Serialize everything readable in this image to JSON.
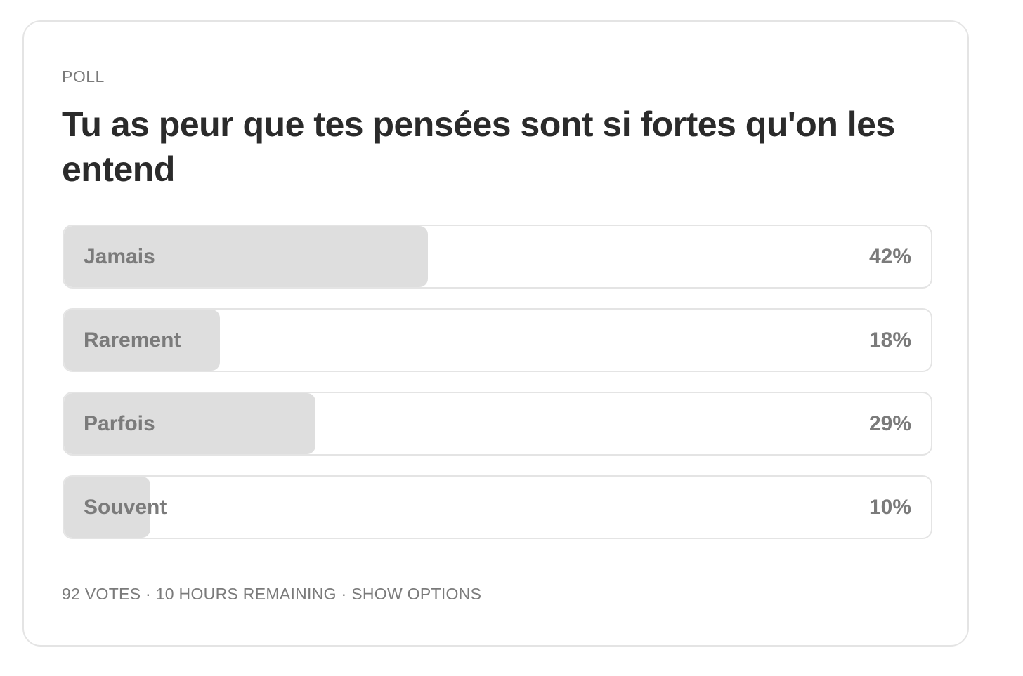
{
  "poll": {
    "label": "POLL",
    "question": "Tu as peur que tes pensées sont si fortes qu'on les entend",
    "options": [
      {
        "label": "Jamais",
        "percent_text": "42%",
        "fill_fraction": 0.42
      },
      {
        "label": "Rarement",
        "percent_text": "18%",
        "fill_fraction": 0.18
      },
      {
        "label": "Parfois",
        "percent_text": "29%",
        "fill_fraction": 0.29
      },
      {
        "label": "Souvent",
        "percent_text": "10%",
        "fill_fraction": 0.1
      }
    ],
    "footer": {
      "votes": "92 VOTES",
      "separator": " · ",
      "remaining": "10 HOURS REMAINING",
      "show_options": "SHOW OPTIONS"
    }
  },
  "colors": {
    "fill": "#dedede",
    "border": "#e4e4e4",
    "muted_text": "#7a7a7a",
    "title_text": "#2b2b2b"
  }
}
